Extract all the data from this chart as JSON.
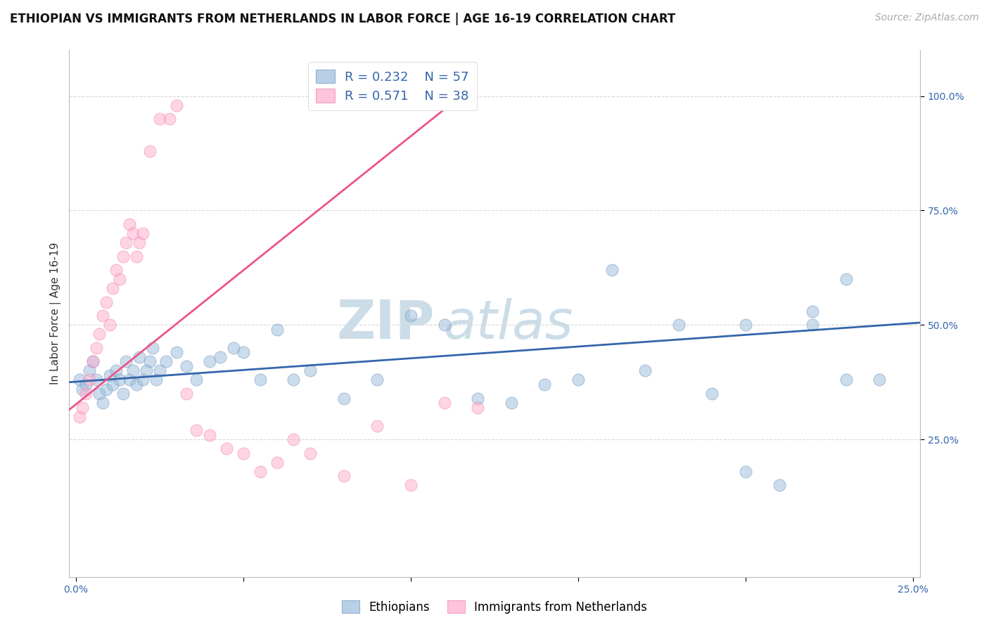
{
  "title": "ETHIOPIAN VS IMMIGRANTS FROM NETHERLANDS IN LABOR FORCE | AGE 16-19 CORRELATION CHART",
  "source": "Source: ZipAtlas.com",
  "ylabel": "In Labor Force | Age 16-19",
  "watermark_line1": "ZIP",
  "watermark_line2": "atlas",
  "blue_R": 0.232,
  "blue_N": 57,
  "pink_R": 0.571,
  "pink_N": 38,
  "blue_label": "Ethiopians",
  "pink_label": "Immigrants from Netherlands",
  "xlim": [
    -0.002,
    0.252
  ],
  "ylim": [
    -0.05,
    1.1
  ],
  "right_yticks": [
    0.25,
    0.5,
    0.75,
    1.0
  ],
  "xtick_positions": [
    0.0,
    0.05,
    0.1,
    0.15,
    0.2,
    0.25
  ],
  "blue_scatter_x": [
    0.001,
    0.002,
    0.003,
    0.004,
    0.005,
    0.006,
    0.007,
    0.008,
    0.009,
    0.01,
    0.011,
    0.012,
    0.013,
    0.014,
    0.015,
    0.016,
    0.017,
    0.018,
    0.019,
    0.02,
    0.021,
    0.022,
    0.023,
    0.024,
    0.025,
    0.027,
    0.03,
    0.033,
    0.036,
    0.04,
    0.043,
    0.047,
    0.05,
    0.055,
    0.06,
    0.065,
    0.07,
    0.08,
    0.09,
    0.1,
    0.11,
    0.12,
    0.13,
    0.14,
    0.15,
    0.16,
    0.17,
    0.18,
    0.19,
    0.2,
    0.21,
    0.22,
    0.23,
    0.24,
    0.2,
    0.22,
    0.23
  ],
  "blue_scatter_y": [
    0.38,
    0.36,
    0.37,
    0.4,
    0.42,
    0.38,
    0.35,
    0.33,
    0.36,
    0.39,
    0.37,
    0.4,
    0.38,
    0.35,
    0.42,
    0.38,
    0.4,
    0.37,
    0.43,
    0.38,
    0.4,
    0.42,
    0.45,
    0.38,
    0.4,
    0.42,
    0.44,
    0.41,
    0.38,
    0.42,
    0.43,
    0.45,
    0.44,
    0.38,
    0.49,
    0.38,
    0.4,
    0.34,
    0.38,
    0.52,
    0.5,
    0.34,
    0.33,
    0.37,
    0.38,
    0.62,
    0.4,
    0.5,
    0.35,
    0.5,
    0.15,
    0.5,
    0.6,
    0.38,
    0.18,
    0.53,
    0.38
  ],
  "pink_scatter_x": [
    0.001,
    0.002,
    0.003,
    0.004,
    0.005,
    0.006,
    0.007,
    0.008,
    0.009,
    0.01,
    0.011,
    0.012,
    0.013,
    0.014,
    0.015,
    0.016,
    0.017,
    0.018,
    0.019,
    0.02,
    0.022,
    0.025,
    0.028,
    0.03,
    0.033,
    0.036,
    0.04,
    0.045,
    0.05,
    0.055,
    0.06,
    0.065,
    0.07,
    0.08,
    0.09,
    0.1,
    0.11,
    0.12
  ],
  "pink_scatter_y": [
    0.3,
    0.32,
    0.35,
    0.38,
    0.42,
    0.45,
    0.48,
    0.52,
    0.55,
    0.5,
    0.58,
    0.62,
    0.6,
    0.65,
    0.68,
    0.72,
    0.7,
    0.65,
    0.68,
    0.7,
    0.88,
    0.95,
    0.95,
    0.98,
    0.35,
    0.27,
    0.26,
    0.23,
    0.22,
    0.18,
    0.2,
    0.25,
    0.22,
    0.17,
    0.28,
    0.15,
    0.33,
    0.32
  ],
  "blue_line_x": [
    -0.002,
    0.252
  ],
  "blue_line_y": [
    0.375,
    0.505
  ],
  "pink_line_x": [
    -0.002,
    0.115
  ],
  "pink_line_y": [
    0.315,
    1.0
  ],
  "background_color": "#ffffff",
  "grid_color": "#d8d8d8",
  "blue_color": "#99bbdd",
  "pink_color": "#ffaacc",
  "blue_edge_color": "#7799bb",
  "pink_edge_color": "#ee88aa",
  "blue_line_color": "#3366aa",
  "pink_line_color": "#ee5588",
  "title_fontsize": 12,
  "axis_label_fontsize": 11,
  "tick_fontsize": 10,
  "legend_fontsize": 13,
  "watermark_fontsize": 55,
  "watermark_color": "#ccdde8",
  "source_fontsize": 10
}
